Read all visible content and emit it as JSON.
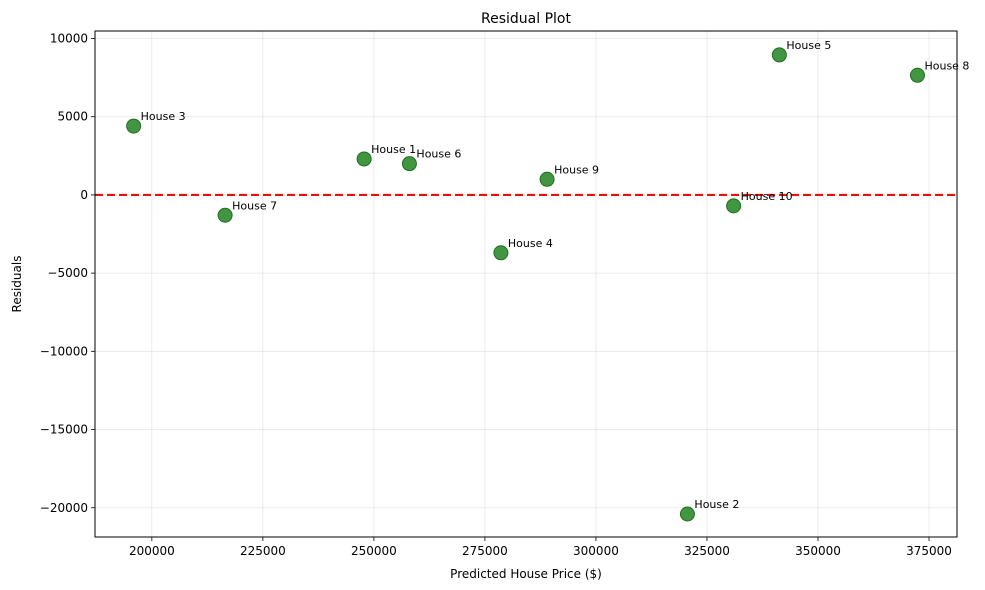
{
  "chart_data": {
    "type": "scatter",
    "title": "Residual Plot",
    "xlabel": "Predicted House Price ($)",
    "ylabel": "Residuals",
    "xlim": [
      187200,
      381300
    ],
    "ylim": [
      -21870,
      10480
    ],
    "xticks": [
      200000,
      225000,
      250000,
      275000,
      300000,
      325000,
      350000,
      375000
    ],
    "yticks": [
      -20000,
      -15000,
      -10000,
      -5000,
      0,
      5000,
      10000
    ],
    "grid": true,
    "reference_line": {
      "y": 0,
      "style": "dashed",
      "color": "#e8120c"
    },
    "marker_color": "#2e8b2e",
    "points": [
      {
        "label": "House 1",
        "x": 247800,
        "y": 2300
      },
      {
        "label": "House 2",
        "x": 320600,
        "y": -20400
      },
      {
        "label": "House 3",
        "x": 195900,
        "y": 4400
      },
      {
        "label": "House 4",
        "x": 278600,
        "y": -3700
      },
      {
        "label": "House 5",
        "x": 341300,
        "y": 8950
      },
      {
        "label": "House 6",
        "x": 258000,
        "y": 2000
      },
      {
        "label": "House 7",
        "x": 216500,
        "y": -1300
      },
      {
        "label": "House 8",
        "x": 372400,
        "y": 7650
      },
      {
        "label": "House 9",
        "x": 289000,
        "y": 1000
      },
      {
        "label": "House 10",
        "x": 331000,
        "y": -700
      }
    ]
  }
}
